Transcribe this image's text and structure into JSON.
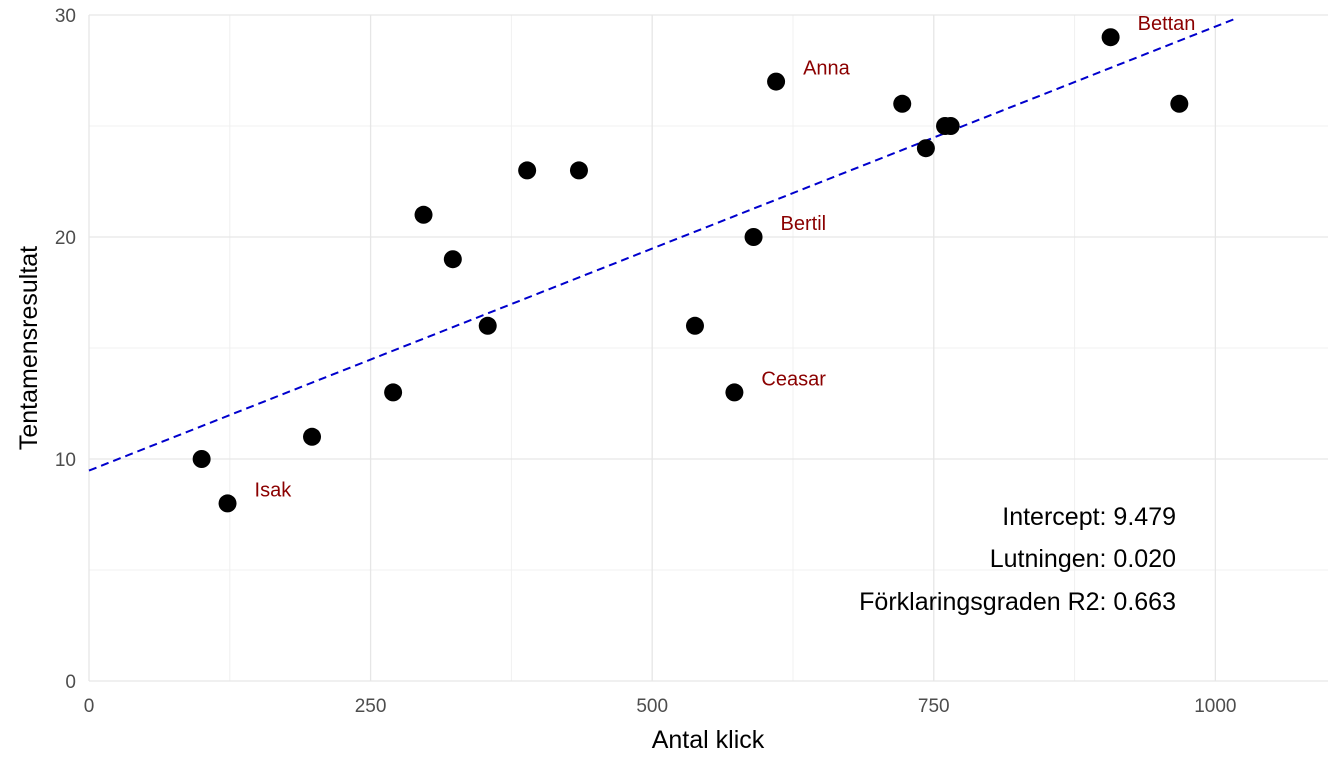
{
  "chart_data": {
    "type": "scatter",
    "xlabel": "Antal klick",
    "ylabel": "Tentamensresultat",
    "xlim": [
      0,
      1100
    ],
    "ylim": [
      0,
      30
    ],
    "x_ticks": [
      0,
      250,
      500,
      750,
      1000
    ],
    "y_ticks": [
      0,
      10,
      20,
      30
    ],
    "grid": true,
    "point_color": "#000000",
    "label_color": "#8b0000",
    "line_color": "#0000cd",
    "points": [
      {
        "x": 100,
        "y": 10
      },
      {
        "x": 123,
        "y": 8,
        "label": "Isak"
      },
      {
        "x": 198,
        "y": 11
      },
      {
        "x": 270,
        "y": 13
      },
      {
        "x": 297,
        "y": 21
      },
      {
        "x": 323,
        "y": 19
      },
      {
        "x": 354,
        "y": 16
      },
      {
        "x": 389,
        "y": 23
      },
      {
        "x": 435,
        "y": 23
      },
      {
        "x": 538,
        "y": 16
      },
      {
        "x": 573,
        "y": 13,
        "label": "Ceasar"
      },
      {
        "x": 590,
        "y": 20,
        "label": "Bertil"
      },
      {
        "x": 610,
        "y": 27,
        "label": "Anna"
      },
      {
        "x": 722,
        "y": 26
      },
      {
        "x": 743,
        "y": 24
      },
      {
        "x": 760,
        "y": 25
      },
      {
        "x": 765,
        "y": 25
      },
      {
        "x": 907,
        "y": 29,
        "label": "Bettan"
      },
      {
        "x": 968,
        "y": 26
      }
    ],
    "regression": {
      "style": "dashed",
      "intercept": 9.479,
      "slope": 0.02,
      "x_range": [
        0,
        1020
      ]
    },
    "annotations": {
      "intercept": "Intercept: 9.479",
      "slope": "Lutningen: 0.020",
      "r2": "Förklaringsgraden R2: 0.663"
    }
  }
}
